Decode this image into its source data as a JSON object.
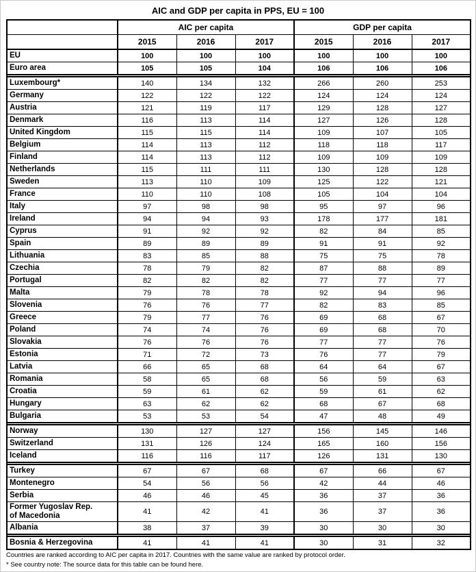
{
  "title": "AIC and GDP per capita in PPS, EU = 100",
  "table": {
    "col_groups": [
      "AIC per capita",
      "GDP per capita"
    ],
    "years": [
      "2015",
      "2016",
      "2017"
    ],
    "groups": [
      {
        "bold_values": true,
        "rows": [
          {
            "name": "EU",
            "aic": [
              100,
              100,
              100
            ],
            "gdp": [
              100,
              100,
              100
            ]
          },
          {
            "name": "Euro area",
            "aic": [
              105,
              105,
              104
            ],
            "gdp": [
              106,
              106,
              106
            ]
          }
        ]
      },
      {
        "bold_values": false,
        "rows": [
          {
            "name": "Luxembourg*",
            "aic": [
              140,
              134,
              132
            ],
            "gdp": [
              266,
              260,
              253
            ]
          },
          {
            "name": "Germany",
            "aic": [
              122,
              122,
              122
            ],
            "gdp": [
              124,
              124,
              124
            ]
          },
          {
            "name": "Austria",
            "aic": [
              121,
              119,
              117
            ],
            "gdp": [
              129,
              128,
              127
            ]
          },
          {
            "name": "Denmark",
            "aic": [
              116,
              113,
              114
            ],
            "gdp": [
              127,
              126,
              128
            ]
          },
          {
            "name": "United Kingdom",
            "aic": [
              115,
              115,
              114
            ],
            "gdp": [
              109,
              107,
              105
            ]
          },
          {
            "name": "Belgium",
            "aic": [
              114,
              113,
              112
            ],
            "gdp": [
              118,
              118,
              117
            ]
          },
          {
            "name": "Finland",
            "aic": [
              114,
              113,
              112
            ],
            "gdp": [
              109,
              109,
              109
            ]
          },
          {
            "name": "Netherlands",
            "aic": [
              115,
              111,
              111
            ],
            "gdp": [
              130,
              128,
              128
            ]
          },
          {
            "name": "Sweden",
            "aic": [
              113,
              110,
              109
            ],
            "gdp": [
              125,
              122,
              121
            ]
          },
          {
            "name": "France",
            "aic": [
              110,
              110,
              108
            ],
            "gdp": [
              105,
              104,
              104
            ]
          },
          {
            "name": "Italy",
            "aic": [
              97,
              98,
              98
            ],
            "gdp": [
              95,
              97,
              96
            ]
          },
          {
            "name": "Ireland",
            "aic": [
              94,
              94,
              93
            ],
            "gdp": [
              178,
              177,
              181
            ]
          },
          {
            "name": "Cyprus",
            "aic": [
              91,
              92,
              92
            ],
            "gdp": [
              82,
              84,
              85
            ]
          },
          {
            "name": "Spain",
            "aic": [
              89,
              89,
              89
            ],
            "gdp": [
              91,
              91,
              92
            ]
          },
          {
            "name": "Lithuania",
            "aic": [
              83,
              85,
              88
            ],
            "gdp": [
              75,
              75,
              78
            ]
          },
          {
            "name": "Czechia",
            "aic": [
              78,
              79,
              82
            ],
            "gdp": [
              87,
              88,
              89
            ]
          },
          {
            "name": "Portugal",
            "aic": [
              82,
              82,
              82
            ],
            "gdp": [
              77,
              77,
              77
            ]
          },
          {
            "name": "Malta",
            "aic": [
              79,
              78,
              78
            ],
            "gdp": [
              92,
              94,
              96
            ]
          },
          {
            "name": "Slovenia",
            "aic": [
              76,
              76,
              77
            ],
            "gdp": [
              82,
              83,
              85
            ]
          },
          {
            "name": "Greece",
            "aic": [
              79,
              77,
              76
            ],
            "gdp": [
              69,
              68,
              67
            ]
          },
          {
            "name": "Poland",
            "aic": [
              74,
              74,
              76
            ],
            "gdp": [
              69,
              68,
              70
            ]
          },
          {
            "name": "Slovakia",
            "aic": [
              76,
              76,
              76
            ],
            "gdp": [
              77,
              77,
              76
            ]
          },
          {
            "name": "Estonia",
            "aic": [
              71,
              72,
              73
            ],
            "gdp": [
              76,
              77,
              79
            ]
          },
          {
            "name": "Latvia",
            "aic": [
              66,
              65,
              68
            ],
            "gdp": [
              64,
              64,
              67
            ]
          },
          {
            "name": "Romania",
            "aic": [
              58,
              65,
              68
            ],
            "gdp": [
              56,
              59,
              63
            ]
          },
          {
            "name": "Croatia",
            "aic": [
              59,
              61,
              62
            ],
            "gdp": [
              59,
              61,
              62
            ]
          },
          {
            "name": "Hungary",
            "aic": [
              63,
              62,
              62
            ],
            "gdp": [
              68,
              67,
              68
            ]
          },
          {
            "name": "Bulgaria",
            "aic": [
              53,
              53,
              54
            ],
            "gdp": [
              47,
              48,
              49
            ]
          }
        ]
      },
      {
        "bold_values": false,
        "rows": [
          {
            "name": "Norway",
            "aic": [
              130,
              127,
              127
            ],
            "gdp": [
              156,
              145,
              146
            ]
          },
          {
            "name": "Switzerland",
            "aic": [
              131,
              126,
              124
            ],
            "gdp": [
              165,
              160,
              156
            ]
          },
          {
            "name": "Iceland",
            "aic": [
              116,
              116,
              117
            ],
            "gdp": [
              126,
              131,
              130
            ]
          }
        ]
      },
      {
        "bold_values": false,
        "rows": [
          {
            "name": "Turkey",
            "aic": [
              67,
              67,
              68
            ],
            "gdp": [
              67,
              66,
              67
            ]
          },
          {
            "name": "Montenegro",
            "aic": [
              54,
              56,
              56
            ],
            "gdp": [
              42,
              44,
              46
            ]
          },
          {
            "name": "Serbia",
            "aic": [
              46,
              46,
              45
            ],
            "gdp": [
              36,
              37,
              36
            ]
          },
          {
            "name": "Former Yugoslav Rep.\nof Macedonia",
            "aic": [
              41,
              42,
              41
            ],
            "gdp": [
              36,
              37,
              36
            ]
          },
          {
            "name": "Albania",
            "aic": [
              38,
              37,
              39
            ],
            "gdp": [
              30,
              30,
              30
            ]
          }
        ]
      },
      {
        "bold_values": false,
        "rows": [
          {
            "name": "Bosnia & Herzegovina",
            "aic": [
              41,
              41,
              41
            ],
            "gdp": [
              30,
              31,
              32
            ]
          }
        ]
      }
    ]
  },
  "footnotes": {
    "line1": "Countries are ranked according to AIC per capita in 2017. Countries with the same value are ranked by protocol order.",
    "line2": "* See country note: The source data for this table can be found here."
  }
}
